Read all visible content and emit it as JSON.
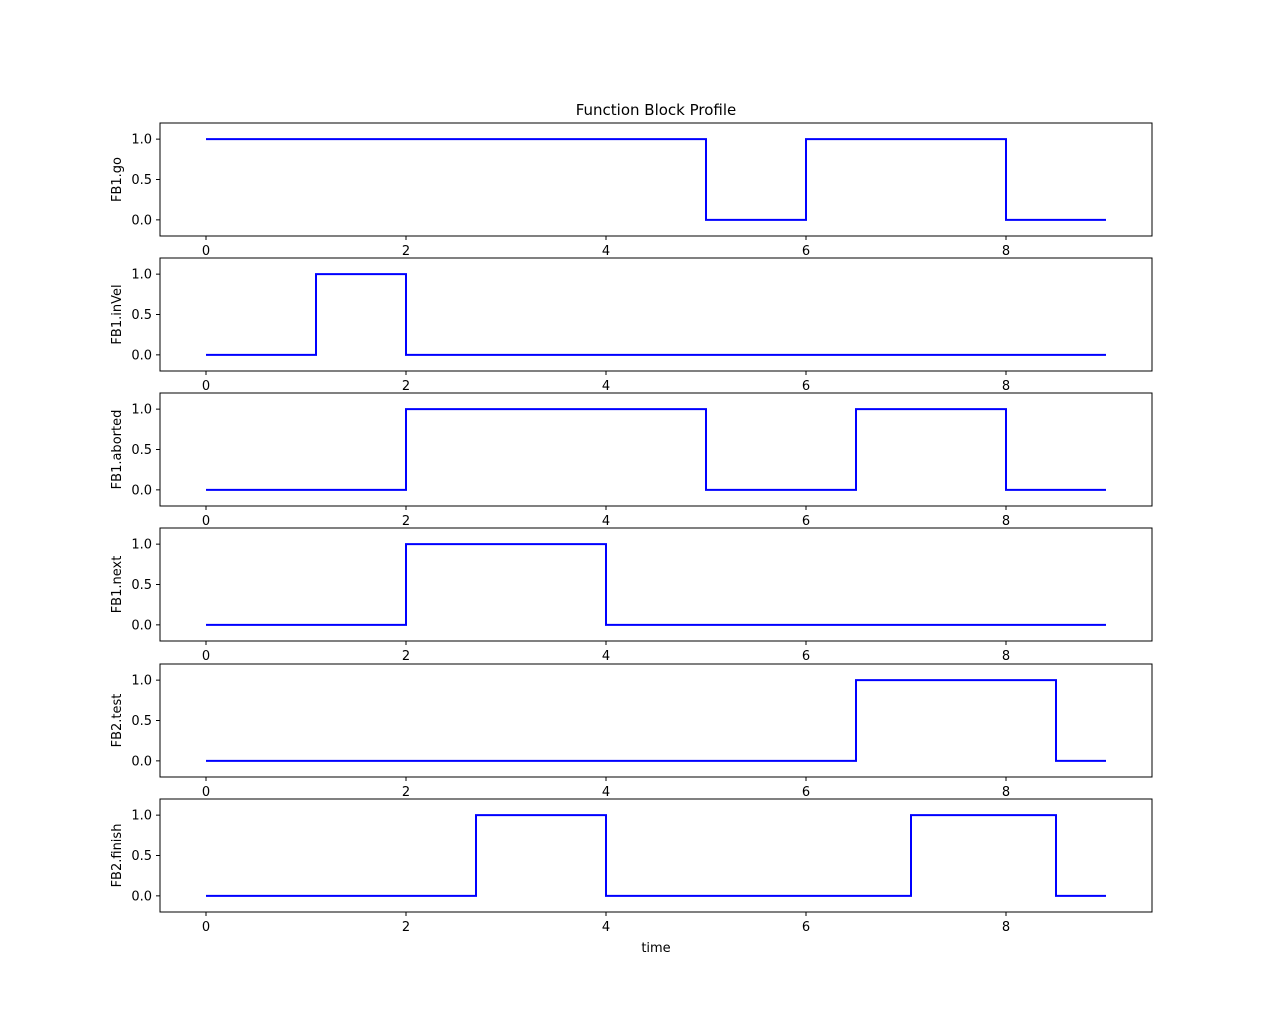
{
  "chart_data": {
    "type": "line",
    "title": "Function Block Profile",
    "xlabel": "time",
    "xlim": [
      -0.46,
      9.46
    ],
    "ylim": [
      -0.2,
      1.2
    ],
    "xticks": [
      0,
      2,
      4,
      6,
      8
    ],
    "yticks": [
      "0.0",
      "0.5",
      "1.0"
    ],
    "grid": false,
    "line_color": "#0000ff",
    "step": true,
    "subplots": [
      {
        "ylabel": "FB1.go",
        "x": [
          0,
          5,
          6,
          8,
          9
        ],
        "y": [
          1,
          0,
          1,
          0,
          0
        ]
      },
      {
        "ylabel": "FB1.inVel",
        "x": [
          0,
          1.1,
          2,
          9
        ],
        "y": [
          0,
          1,
          0,
          0
        ]
      },
      {
        "ylabel": "FB1.aborted",
        "x": [
          0,
          2,
          5,
          6.5,
          8,
          9
        ],
        "y": [
          0,
          1,
          0,
          1,
          0,
          0
        ]
      },
      {
        "ylabel": "FB1.next",
        "x": [
          0,
          2,
          4,
          9
        ],
        "y": [
          0,
          1,
          0,
          0
        ]
      },
      {
        "ylabel": "FB2.test",
        "x": [
          0,
          6.5,
          8.5,
          9
        ],
        "y": [
          0,
          1,
          0,
          0
        ]
      },
      {
        "ylabel": "FB2.finish",
        "x": [
          0,
          2.7,
          4,
          7.05,
          8.5,
          9
        ],
        "y": [
          0,
          1,
          0,
          1,
          0,
          0
        ]
      }
    ]
  }
}
